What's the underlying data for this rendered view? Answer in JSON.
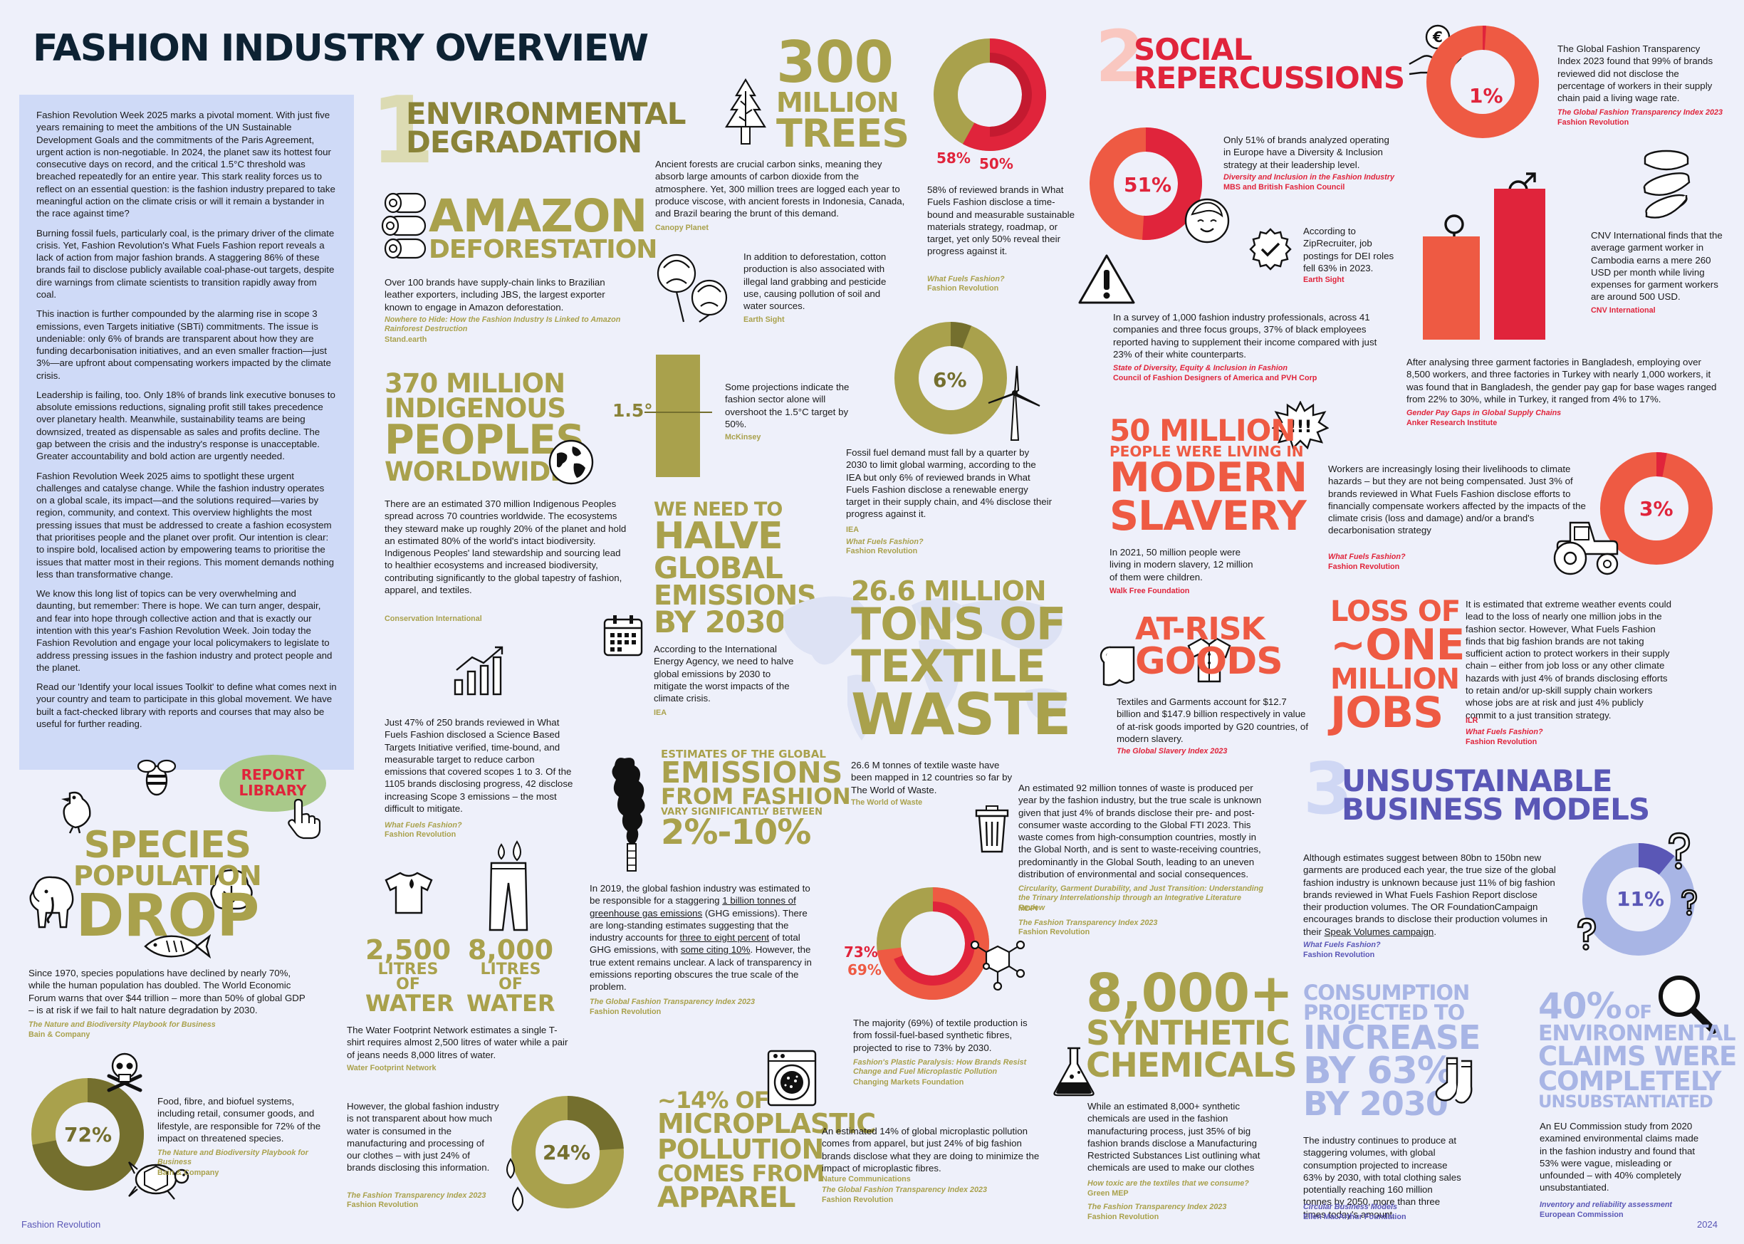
{
  "title": "FASHION INDUSTRY OVERVIEW",
  "intro": [
    "Fashion Revolution Week 2025 marks a pivotal moment. With just five years remaining to meet the ambitions of the UN Sustainable Development Goals and the commitments of the Paris Agreement, urgent action is non-negotiable. In 2024, the planet saw its hottest four consecutive days on record, and the critical 1.5°C threshold was breached repeatedly for an entire year. This stark reality forces us to reflect on an essential question: is the fashion industry prepared to take meaningful action on the climate crisis or will it remain a bystander in the race against time?",
    "Burning fossil fuels, particularly coal, is the primary driver of the climate crisis. Yet, Fashion Revolution's What Fuels Fashion report reveals a lack of action from major fashion brands. A staggering 86% of these brands fail to disclose publicly available coal-phase-out targets, despite dire warnings from climate scientists to transition rapidly away from coal.",
    "This inaction is further compounded by the alarming rise in scope 3 emissions, even Targets initiative (SBTi) commitments. The issue is undeniable: only 6% of brands are transparent about how they are funding decarbonisation initiatives, and an even smaller fraction—just 3%—are upfront about compensating workers impacted by the climate crisis.",
    "Leadership is failing, too. Only 18% of brands link executive bonuses to absolute emissions reductions, signaling profit still takes precedence over planetary health. Meanwhile, sustainability teams are being downsized, treated as dispensable as sales and profits decline. The gap between the crisis and the industry's response is unacceptable. Greater accountability and bold action are urgently needed.",
    "Fashion Revolution Week 2025 aims to spotlight these urgent challenges and catalyse change. While the fashion industry operates on a global scale, its impact—and the solutions required—varies by region, community, and context. This overview highlights the most pressing issues that must be addressed to create a fashion ecosystem that prioritises people and the planet over profit. Our intention is clear: to inspire bold, localised action by empowering teams to prioritise the issues that matter most in their regions. This moment demands nothing less than transformative change.",
    "We know this long list of topics can be very overwhelming and daunting, but remember: There is hope. We can turn anger, despair, and fear into hope through collective action and that is exactly our intention with this year's Fashion Revolution Week. Join today the Fashion Revolution and engage your local policymakers to legislate to address pressing issues in the fashion industry and protect people and the planet.",
    "Read our 'Identify your local issues Toolkit' to define what comes next in your country and team to participate in this global movement. We have built a fact-checked library with reports and courses that may also be useful for further reading."
  ],
  "report_library": {
    "line1": "REPORT",
    "line2": "LIBRARY"
  },
  "footer": {
    "brand": "Fashion Revolution",
    "year": "2024"
  },
  "sec1": {
    "num": "1",
    "l1": "ENVIRONMENTAL",
    "l2": "DEGRADATION"
  },
  "sec2": {
    "num": "2",
    "l1": "SOCIAL",
    "l2": "REPERCUSSIONS"
  },
  "sec3": {
    "num": "3",
    "l1": "UNSUSTAINABLE",
    "l2": "BUSINESS MODELS"
  },
  "amazon": {
    "l1": "AMAZON",
    "l2": "DEFORESTATION",
    "text": "Over 100 brands have supply-chain links to Brazilian leather exporters, including JBS, the largest exporter known to engage in Amazon deforestation.",
    "src1": "Nowhere to Hide: How the Fashion Industry Is Linked to Amazon Rainforest Destruction",
    "src2": "Stand.earth"
  },
  "trees": {
    "l1": "300",
    "l2": "MILLION",
    "l3": "TREES",
    "text": "Ancient forests are crucial carbon sinks, meaning they absorb large amounts of carbon dioxide from the atmosphere. Yet, 300 million trees are logged each year to produce viscose, with ancient forests in Indonesia, Canada, and Brazil bearing the brunt of this demand.",
    "src": "Canopy Planet"
  },
  "cotton": {
    "text": "In addition to deforestation, cotton production is also associated with illegal land grabbing and pesticide use, causing pollution of soil and water sources.",
    "src": "Earth Sight"
  },
  "targets": {
    "v1": "58%",
    "v2": "50%",
    "text": "58% of reviewed brands in What Fuels Fashion disclose a time-bound and measurable sustainable materials strategy, roadmap, or target, yet only 50% reveal their progress against it.",
    "src1": "What Fuels Fashion?",
    "src2": "Fashion Revolution"
  },
  "indigenous": {
    "l1": "370 MILLION",
    "l2": "INDIGENOUS",
    "l3": "PEOPLES",
    "l4": "WORLDWIDE",
    "text": "There are an estimated 370 million Indigenous Peoples spread across 70 countries worldwide. The ecosystems they steward make up roughly 20% of the planet and hold an estimated 80% of the world's intact biodiversity. Indigenous Peoples' land stewardship and sourcing lead to healthier ecosystems and increased biodiversity, contributing significantly to the global tapestry of fashion, apparel, and textiles.",
    "src": "Conservation International"
  },
  "degree": {
    "label": "1.5°",
    "text": "Some projections indicate the fashion sector alone will overshoot the 1.5°C target by 50%.",
    "src": "McKinsey"
  },
  "fossil": {
    "value": "6%",
    "text": "Fossil fuel demand must fall by a quarter by 2030 to limit global warming, according to the IEA but only 6% of reviewed brands in What Fuels Fashion disclose a renewable energy target in their supply chain, and 4% disclose their progress against it.",
    "src1": "IEA",
    "src2": "What Fuels Fashion?",
    "src3": "Fashion Revolution"
  },
  "halve": {
    "l1": "WE NEED TO",
    "l2": "HALVE",
    "l3": "GLOBAL",
    "l4": "EMISSIONS",
    "l5": "BY 2030",
    "text": "According to the International Energy Agency, we need to halve global emissions by 2030 to mitigate the worst impacts of the climate crisis.",
    "src": "IEA"
  },
  "sbti": {
    "text": "Just 47% of 250 brands reviewed in What Fuels Fashion disclosed a Science Based Targets Initiative verified, time-bound, and measurable target to reduce carbon emissions that covered scopes 1 to 3. Of the 1105 brands disclosing progress, 42 disclose increasing Scope 3 emissions – the most difficult to mitigate.",
    "src1": "What Fuels Fashion?",
    "src2": "Fashion Revolution"
  },
  "textile": {
    "l1": "26.6 MILLION",
    "l2": "TONS OF",
    "l3": "TEXTILE",
    "l4": "WASTE",
    "text": "26.6 M tonnes of textile waste have been mapped in 12 countries so far by The World of Waste.",
    "src": "The World of Waste"
  },
  "estimates": {
    "l1": "ESTIMATES OF THE GLOBAL",
    "l2": "EMISSIONS",
    "l3": "FROM FASHION",
    "l4": "VARY SIGNIFICANTLY BETWEEN",
    "l5": "2%-10%",
    "text_pre": "In 2019, the global fashion industry was estimated to be responsible for a staggering ",
    "text_u1": "1 billion tonnes of greenhouse gas emissions",
    "text_mid1": " (GHG emissions). There are long-standing estimates suggesting that the industry accounts for ",
    "text_u2": "three to eight percent",
    "text_mid2": " of total GHG emissions, with ",
    "text_u3": "some citing 10%",
    "text_post": ". However, the true extent remains unclear. A lack of transparency in emissions reporting obscures the true scale of the problem.",
    "src1": "The Global Fashion Transparency Index 2023",
    "src2": "Fashion Revolution"
  },
  "waste92": {
    "text": "An estimated 92 million tonnes of waste is produced per year by the fashion industry, but the true scale is unknown given that just 4% of brands disclose their pre- and post-consumer waste according to the Global FTI 2023. This waste comes from high-consumption countries, mostly in the Global North, and is sent to waste-receiving countries, predominantly in the Global South, leading to an uneven distribution of environmental and social consequences.",
    "src1": "Circularity, Garment Durability, and Just Transition: Understanding the Trinary Interrelationship through an Integrative Literature Review",
    "src2": "MDPI",
    "src3": "The Fashion Transparency Index 2023",
    "src4": "Fashion Revolution"
  },
  "synthetic_fib": {
    "v1": "73%",
    "v2": "69%",
    "text": "The majority (69%) of textile production is from fossil-fuel-based synthetic fibres, projected to rise to 73% by 2030.",
    "src1": "Fashion's Plastic Paralysis: How Brands Resist Change and Fuel Microplastic Pollution",
    "src2": "Changing Markets Foundation"
  },
  "water": {
    "n1": "2,500",
    "u1a": "LITRES OF",
    "u1b": "WATER",
    "n2": "8,000",
    "u2a": "LITRES OF",
    "u2b": "WATER",
    "text": "The Water Footprint Network estimates a single T-shirt requires almost 2,500 litres of water while a pair of jeans needs 8,000 litres of water.",
    "src": "Water Footprint Network"
  },
  "water2": {
    "value": "24%",
    "text": "However, the global fashion industry is not transparent about how much water is consumed in the manufacturing and processing of our clothes – with just 24% of brands disclosing this information.",
    "src1": "The Fashion Transparency Index 2023",
    "src2": "Fashion Revolution"
  },
  "micro": {
    "l1": "~14% OF",
    "l2": "MICROPLASTIC",
    "l3": "POLLUTION",
    "l4": "COMES FROM",
    "l5": "APPAREL",
    "text": "An estimated 14% of global microplastic pollution comes from apparel, but just 24% of big fashion brands disclose what they are doing to minimize the impact of microplastic fibres.",
    "src1": "Nature Communications",
    "src2": "The Global Fashion Transparency Index 2023",
    "src3": "Fashion Revolution"
  },
  "species": {
    "l1": "SPECIES",
    "l2": "POPULATION",
    "l3": "DROP",
    "text": "Since 1970, species populations have declined by nearly 70%, while the human population has doubled. The World Economic Forum warns that over $44 trillion – more than 50% of global GDP – is at risk if we fail to halt nature degradation by 2030.",
    "src1": "The Nature and Biodiversity Playbook for Business",
    "src2": "Bain & Company"
  },
  "threat": {
    "value": "72%",
    "text": "Food, fibre, and biofuel systems, including retail, consumer goods, and lifestyle, are responsible for 72% of the impact on threatened species.",
    "src1": "The Nature and Biodiversity Playbook for Business",
    "src2": "Bain & Company"
  },
  "chemicals": {
    "l1": "8,000+",
    "l2": "SYNTHETIC",
    "l3": "CHEMICALS",
    "text": "While an estimated 8,000+ synthetic chemicals are used in the fashion manufacturing process, just 35% of big fashion brands disclose a Manufacturing Restricted Substances List outlining what chemicals are used to make our clothes",
    "src1": "How toxic are the textiles that we consume?",
    "src2": "Green MEP",
    "src3": "The Fashion Transparency Index 2023",
    "src4": "Fashion Revolution"
  },
  "diversity": {
    "value": "51%",
    "text": "Only 51% of brands analyzed operating in Europe have a Diversity & Inclusion strategy at their leadership level.",
    "src1": "Diversity and Inclusion in the Fashion Industry",
    "src2": "MBS and British Fashion Council"
  },
  "dei": {
    "text": "According to ZipRecruiter, job postings for DEI roles fell 63% in 2023.",
    "src": "Earth Sight"
  },
  "survey": {
    "text": "In a survey of 1,000 fashion industry professionals, across 41 companies and three focus groups, 37% of black employees reported having to supplement their income compared with just 23% of their white counterparts.",
    "src1": "State of Diversity, Equity & Inclusion in Fashion",
    "src2": "Council of Fashion Designers of America and PVH Corp"
  },
  "wage": {
    "value": "1%",
    "text": "The Global Fashion Transparency Index 2023 found that 99% of brands reviewed did not disclose the percentage of workers in their supply chain paid a living wage rate.",
    "src1": "The Global Fashion Transparency Index 2023",
    "src2": "Fashion Revolution"
  },
  "cambodia": {
    "text": "CNV International finds that the average garment worker in Cambodia earns a mere 260 USD per month while living expenses for garment workers are around 500 USD.",
    "src": "CNV International"
  },
  "gender": {
    "text": "After analysing three garment factories in Bangladesh, employing over 8,500 workers, and three factories in Turkey with nearly 1,000 workers, it was found that in Bangladesh, the gender pay gap for base wages ranged from 22% to 30%, while in Turkey, it ranged from 4% to 17%.",
    "src1": "Gender Pay Gaps in Global Supply Chains",
    "src2": "Anker Research Institute"
  },
  "slavery": {
    "l1": "50 MILLION",
    "l2": "PEOPLE WERE LIVING IN",
    "l3": "MODERN",
    "l4": "SLAVERY",
    "text": "In 2021, 50 million people were living in modern slavery, 12 million of them were children.",
    "src": "Walk Free Foundation"
  },
  "compensation": {
    "value": "3%",
    "text": "Workers are increasingly losing their livelihoods to climate hazards – but they are not being compensated. Just 3% of brands reviewed in What Fuels Fashion disclose efforts to financially compensate workers affected by the impacts of the climate crisis (loss and damage) and/or a brand's decarbonisation strategy",
    "src1": "What Fuels Fashion?",
    "src2": "Fashion Revolution"
  },
  "atrisk": {
    "l1": "AT-RISK",
    "l2": "GOODS",
    "text": "Textiles and Garments account for $12.7 billion and $147.9 billion respectively in value of at-risk goods imported by G20 countries, of modern slavery.",
    "src": "The Global Slavery Index 2023"
  },
  "jobs": {
    "l1": "LOSS OF",
    "l2": "~ONE",
    "l3": "MILLION",
    "l4": "JOBS",
    "text": "It is estimated that extreme weather events could lead to the loss of nearly one million jobs in the fashion sector. However, What Fuels Fashion finds that big fashion brands are not taking sufficient action to protect workers in their supply chain – either from job loss or any other climate hazards with just 4% of brands disclosing efforts to retain and/or up-skill supply chain workers whose jobs are at risk and just 4% publicly commit to a just transition strategy.",
    "src1": "ILR",
    "src2": "What Fuels Fashion?",
    "src3": "Fashion Revolution"
  },
  "volumes": {
    "value": "11%",
    "text_pre": "Although estimates suggest between 80bn to 150bn new garments are produced each year, the true size of the global fashion industry is unknown because just 11% of big fashion brands reviewed in What Fuels Fashion Report disclose their production volumes. The OR FoundationCampaign encourages brands to disclose their production volumes in their ",
    "text_u": "Speak Volumes campaign",
    "text_post": ".",
    "src1": "What Fuels Fashion?",
    "src2": "Fashion Revolution"
  },
  "consumption": {
    "l1": "CONSUMPTION",
    "l2": "PROJECTED TO",
    "l3": "INCREASE",
    "l4": "BY 63%",
    "l5": "BY 2030",
    "text": "The industry continues to produce at staggering volumes, with global consumption projected to increase 63% by 2030, with total clothing sales potentially reaching 160 million tonnes by 2050, more than three times today's amount.",
    "src1": "Circular Business Models",
    "src2": "Ellen MacArthur Foundation"
  },
  "claims": {
    "l1": "40%",
    "l1b": "OF",
    "l2": "ENVIRONMENTAL",
    "l3": "CLAIMS WERE",
    "l4": "COMPLETELY",
    "l5": "UNSUBSTANTIATED",
    "text": "An EU Commission study from 2020 examined environmental claims made in the fashion industry and found that 53% were vague, misleading or unfounded – with 40% completely unsubstantiated.",
    "src1": "Inventory and reliability assessment",
    "src2": "European Commission"
  },
  "donuts": [
    {
      "id": "targets",
      "fraction": 0.58,
      "inner": 0.5,
      "color": "#e0243b",
      "track": "#a9a14c"
    },
    {
      "id": "fossil",
      "fraction": 0.06,
      "color": "#746f2e",
      "track": "#a9a14c"
    },
    {
      "id": "synthetic",
      "fraction": 0.73,
      "inner": 0.69,
      "color": "#ee5a43",
      "track": "#a9a14c"
    },
    {
      "id": "water",
      "fraction": 0.24,
      "color": "#746f2e",
      "track": "#a9a14c"
    },
    {
      "id": "threat",
      "fraction": 0.72,
      "color": "#746f2e",
      "track": "#a9a14c"
    },
    {
      "id": "diversity",
      "fraction": 0.51,
      "color": "#e0243b",
      "track": "#ee5a43"
    },
    {
      "id": "wage",
      "fraction": 0.01,
      "color": "#e0243b",
      "track": "#ee5a43"
    },
    {
      "id": "compensation",
      "fraction": 0.03,
      "color": "#e0243b",
      "track": "#ee5a43"
    },
    {
      "id": "volumes",
      "fraction": 0.11,
      "color": "#5a57b6",
      "track": "#a8b5e5"
    }
  ],
  "colors": {
    "olive": "#a9a14c",
    "dark_olive": "#746f2e",
    "coral": "#ee5a43",
    "crimson": "#e0243b",
    "purple": "#5a57b6",
    "light_blue": "#a8b5e5",
    "navy": "#0d2233",
    "bg": "#eef0fa"
  }
}
